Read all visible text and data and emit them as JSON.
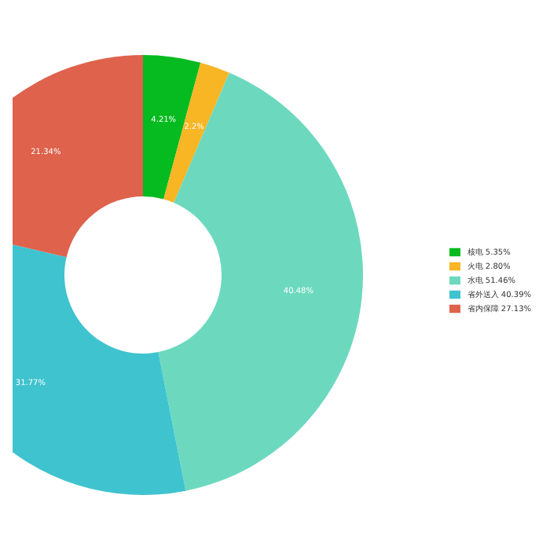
{
  "chart_data": {
    "type": "donut",
    "categories": [
      "核电  5.35%",
      "火电  2.80%",
      "水电  51.46%",
      "省外送入  40.39%",
      "省内保障  27.13%"
    ],
    "values": [
      4.21,
      2.2,
      40.48,
      31.77,
      21.34
    ],
    "value_labels": [
      "4.21%",
      "2.2%",
      "40.48%",
      "31.77%",
      "21.34%"
    ],
    "colors": [
      "#05bb1f",
      "#f8b524",
      "#6cd9be",
      "#3fc3cf",
      "#de624c"
    ],
    "legend": "right"
  }
}
